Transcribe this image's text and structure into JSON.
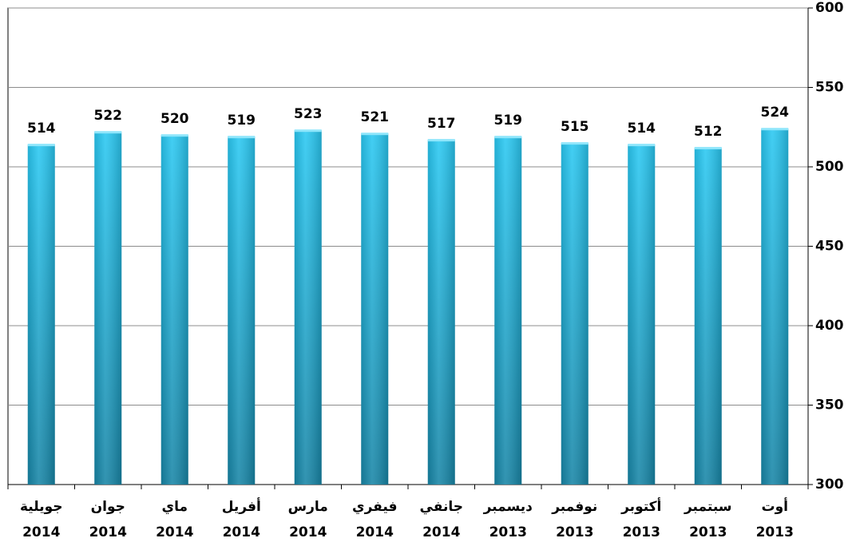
{
  "chart_data": {
    "type": "bar",
    "categories": [
      [
        "جويلية",
        "2014"
      ],
      [
        "جوان",
        "2014"
      ],
      [
        "ماي",
        "2014"
      ],
      [
        "أفريل",
        "2014"
      ],
      [
        "مارس",
        "2014"
      ],
      [
        "فيفري",
        "2014"
      ],
      [
        "جانفي",
        "2014"
      ],
      [
        "ديسمبر",
        "2013"
      ],
      [
        "نوفمبر",
        "2013"
      ],
      [
        "أكتوبر",
        "2013"
      ],
      [
        "سبتمبر",
        "2013"
      ],
      [
        "أوت",
        "2013"
      ]
    ],
    "values": [
      514,
      522,
      520,
      519,
      523,
      521,
      517,
      519,
      515,
      514,
      512,
      524
    ],
    "color": "#29c8f2",
    "ylim": [
      300,
      600
    ],
    "yticks": [
      300,
      350,
      400,
      450,
      500,
      550,
      600
    ],
    "grid": true,
    "y_axis_side": "right"
  }
}
